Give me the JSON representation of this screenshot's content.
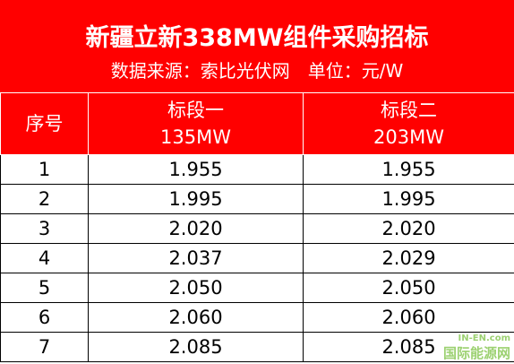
{
  "header": {
    "title": "新疆立新338MW组件采购招标",
    "subtitle": "数据来源：索比光伏网　单位：元/W"
  },
  "table": {
    "columns": [
      {
        "name": "序号"
      },
      {
        "name": "标段一",
        "capacity": "135MW"
      },
      {
        "name": "标段二",
        "capacity": "203MW"
      }
    ],
    "rows": [
      [
        "1",
        "1.955",
        "1.955"
      ],
      [
        "2",
        "1.995",
        "1.995"
      ],
      [
        "3",
        "2.020",
        "2.020"
      ],
      [
        "4",
        "2.037",
        "2.029"
      ],
      [
        "5",
        "2.050",
        "2.050"
      ],
      [
        "6",
        "2.060",
        "2.060"
      ],
      [
        "7",
        "2.085",
        "2.085"
      ]
    ]
  },
  "watermark": {
    "site": "IN-EN.com",
    "name": "国际能源网"
  }
}
